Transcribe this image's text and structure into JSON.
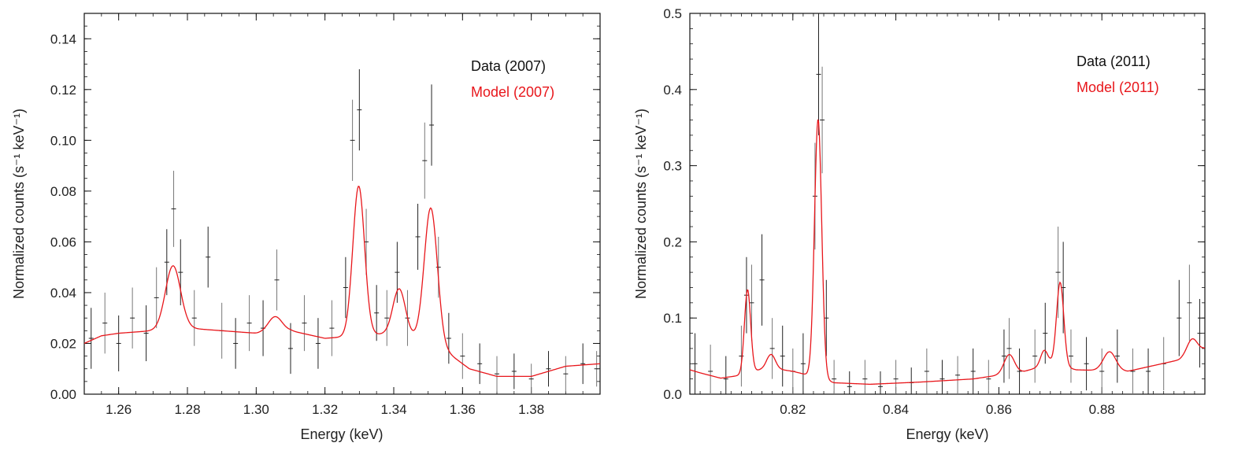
{
  "chart_data": [
    {
      "type": "line",
      "title": "",
      "xlabel": "Energy (keV)",
      "ylabel": "Normalized counts (s⁻¹ keV⁻¹)",
      "xlim": [
        1.25,
        1.4
      ],
      "ylim": [
        0.0,
        0.15
      ],
      "x_ticks": [
        1.26,
        1.28,
        1.3,
        1.32,
        1.34,
        1.36,
        1.38
      ],
      "x_tick_labels": [
        "1.26",
        "1.28",
        "1.30",
        "1.32",
        "1.34",
        "1.36",
        "1.38"
      ],
      "y_ticks": [
        0.0,
        0.02,
        0.04,
        0.06,
        0.08,
        0.1,
        0.12,
        0.14
      ],
      "y_tick_labels": [
        "0.00",
        "0.02",
        "0.04",
        "0.06",
        "0.08",
        "0.10",
        "0.12",
        "0.14"
      ],
      "legend": [
        {
          "label": "Data (2007)",
          "color": "#111111"
        },
        {
          "label": "Model (2007)",
          "color": "#e8161b"
        }
      ],
      "legend_position": "top-right",
      "series": [
        {
          "name": "Data (2007)",
          "kind": "errorbar",
          "color": "#111111",
          "x": [
            1.252,
            1.256,
            1.26,
            1.264,
            1.268,
            1.271,
            1.274,
            1.276,
            1.278,
            1.282,
            1.286,
            1.29,
            1.294,
            1.298,
            1.302,
            1.306,
            1.31,
            1.314,
            1.318,
            1.322,
            1.326,
            1.328,
            1.33,
            1.332,
            1.335,
            1.338,
            1.341,
            1.344,
            1.347,
            1.349,
            1.351,
            1.353,
            1.356,
            1.36,
            1.365,
            1.37,
            1.375,
            1.38,
            1.385,
            1.39,
            1.395,
            1.399
          ],
          "y": [
            0.022,
            0.028,
            0.02,
            0.03,
            0.024,
            0.038,
            0.052,
            0.073,
            0.048,
            0.03,
            0.054,
            0.025,
            0.02,
            0.028,
            0.026,
            0.045,
            0.018,
            0.028,
            0.02,
            0.026,
            0.042,
            0.1,
            0.112,
            0.06,
            0.032,
            0.03,
            0.048,
            0.03,
            0.062,
            0.092,
            0.106,
            0.05,
            0.022,
            0.015,
            0.012,
            0.008,
            0.009,
            0.006,
            0.01,
            0.008,
            0.012,
            0.01
          ],
          "yerr": [
            0.012,
            0.012,
            0.011,
            0.012,
            0.011,
            0.012,
            0.013,
            0.015,
            0.013,
            0.011,
            0.012,
            0.011,
            0.01,
            0.011,
            0.011,
            0.012,
            0.01,
            0.011,
            0.01,
            0.011,
            0.012,
            0.016,
            0.016,
            0.013,
            0.011,
            0.011,
            0.012,
            0.011,
            0.013,
            0.015,
            0.016,
            0.012,
            0.01,
            0.009,
            0.008,
            0.007,
            0.007,
            0.006,
            0.007,
            0.007,
            0.008,
            0.007
          ]
        },
        {
          "name": "Model (2007)",
          "kind": "curve",
          "color": "#e8161b",
          "baseline": [
            [
              1.25,
              0.02
            ],
            [
              1.255,
              0.023
            ],
            [
              1.26,
              0.024
            ],
            [
              1.27,
              0.025
            ],
            [
              1.28,
              0.026
            ],
            [
              1.29,
              0.025
            ],
            [
              1.3,
              0.024
            ],
            [
              1.31,
              0.025
            ],
            [
              1.32,
              0.022
            ],
            [
              1.33,
              0.023
            ],
            [
              1.34,
              0.024
            ],
            [
              1.35,
              0.021
            ],
            [
              1.356,
              0.016
            ],
            [
              1.362,
              0.01
            ],
            [
              1.37,
              0.007
            ],
            [
              1.38,
              0.007
            ],
            [
              1.385,
              0.009
            ],
            [
              1.39,
              0.011
            ],
            [
              1.4,
              0.012
            ]
          ],
          "peaks": [
            {
              "center": 1.2758,
              "amplitude": 0.025,
              "width": 0.0022
            },
            {
              "center": 1.3055,
              "amplitude": 0.006,
              "width": 0.002
            },
            {
              "center": 1.3298,
              "amplitude": 0.059,
              "width": 0.0017
            },
            {
              "center": 1.3416,
              "amplitude": 0.018,
              "width": 0.0018
            },
            {
              "center": 1.3508,
              "amplitude": 0.053,
              "width": 0.0019
            }
          ]
        }
      ]
    },
    {
      "type": "line",
      "title": "",
      "xlabel": "Energy (keV)",
      "ylabel": "Normalized counts (s⁻¹ keV⁻¹)",
      "xlim": [
        0.8,
        0.9
      ],
      "ylim": [
        0.0,
        0.5
      ],
      "x_ticks": [
        0.82,
        0.84,
        0.86,
        0.88
      ],
      "x_tick_labels": [
        "0.82",
        "0.84",
        "0.86",
        "0.88"
      ],
      "y_ticks": [
        0.0,
        0.1,
        0.2,
        0.3,
        0.4,
        0.5
      ],
      "y_tick_labels": [
        "0.0",
        "0.1",
        "0.2",
        "0.3",
        "0.4",
        "0.5"
      ],
      "legend": [
        {
          "label": "Data (2011)",
          "color": "#111111"
        },
        {
          "label": "Model (2011)",
          "color": "#e8161b"
        }
      ],
      "legend_position": "top-right",
      "series": [
        {
          "name": "Data (2011)",
          "kind": "errorbar",
          "color": "#111111",
          "x": [
            0.801,
            0.804,
            0.807,
            0.81,
            0.811,
            0.812,
            0.814,
            0.816,
            0.818,
            0.82,
            0.822,
            0.8243,
            0.825,
            0.8257,
            0.8265,
            0.828,
            0.831,
            0.834,
            0.837,
            0.84,
            0.843,
            0.846,
            0.849,
            0.852,
            0.855,
            0.858,
            0.861,
            0.862,
            0.864,
            0.867,
            0.869,
            0.8715,
            0.8725,
            0.874,
            0.877,
            0.88,
            0.883,
            0.886,
            0.889,
            0.892,
            0.895,
            0.897,
            0.899
          ],
          "y": [
            0.04,
            0.03,
            0.02,
            0.05,
            0.13,
            0.12,
            0.15,
            0.06,
            0.05,
            0.03,
            0.04,
            0.26,
            0.42,
            0.36,
            0.1,
            0.02,
            0.01,
            0.02,
            0.01,
            0.02,
            0.015,
            0.03,
            0.02,
            0.025,
            0.03,
            0.02,
            0.05,
            0.06,
            0.03,
            0.05,
            0.08,
            0.16,
            0.14,
            0.05,
            0.04,
            0.03,
            0.05,
            0.03,
            0.03,
            0.04,
            0.1,
            0.12,
            0.08
          ],
          "yerr": [
            0.04,
            0.035,
            0.03,
            0.04,
            0.05,
            0.05,
            0.06,
            0.04,
            0.04,
            0.03,
            0.04,
            0.07,
            0.08,
            0.07,
            0.05,
            0.025,
            0.02,
            0.025,
            0.02,
            0.025,
            0.02,
            0.03,
            0.025,
            0.025,
            0.03,
            0.025,
            0.035,
            0.04,
            0.03,
            0.035,
            0.04,
            0.06,
            0.06,
            0.035,
            0.035,
            0.03,
            0.035,
            0.03,
            0.03,
            0.035,
            0.05,
            0.05,
            0.045
          ]
        },
        {
          "name": "Model (2011)",
          "kind": "curve",
          "color": "#e8161b",
          "baseline": [
            [
              0.8,
              0.032
            ],
            [
              0.802,
              0.028
            ],
            [
              0.806,
              0.021
            ],
            [
              0.81,
              0.025
            ],
            [
              0.815,
              0.035
            ],
            [
              0.82,
              0.03
            ],
            [
              0.823,
              0.025
            ],
            [
              0.828,
              0.015
            ],
            [
              0.835,
              0.013
            ],
            [
              0.845,
              0.016
            ],
            [
              0.855,
              0.02
            ],
            [
              0.865,
              0.03
            ],
            [
              0.87,
              0.04
            ],
            [
              0.875,
              0.032
            ],
            [
              0.885,
              0.03
            ],
            [
              0.895,
              0.045
            ],
            [
              0.9,
              0.06
            ]
          ],
          "peaks": [
            {
              "center": 0.8112,
              "amplitude": 0.11,
              "width": 0.0006
            },
            {
              "center": 0.8158,
              "amplitude": 0.018,
              "width": 0.0008
            },
            {
              "center": 0.8249,
              "amplitude": 0.34,
              "width": 0.0007
            },
            {
              "center": 0.862,
              "amplitude": 0.025,
              "width": 0.001
            },
            {
              "center": 0.8688,
              "amplitude": 0.02,
              "width": 0.0007
            },
            {
              "center": 0.8719,
              "amplitude": 0.11,
              "width": 0.0007
            },
            {
              "center": 0.8815,
              "amplitude": 0.025,
              "width": 0.0012
            },
            {
              "center": 0.8975,
              "amplitude": 0.02,
              "width": 0.001
            }
          ]
        }
      ]
    }
  ]
}
